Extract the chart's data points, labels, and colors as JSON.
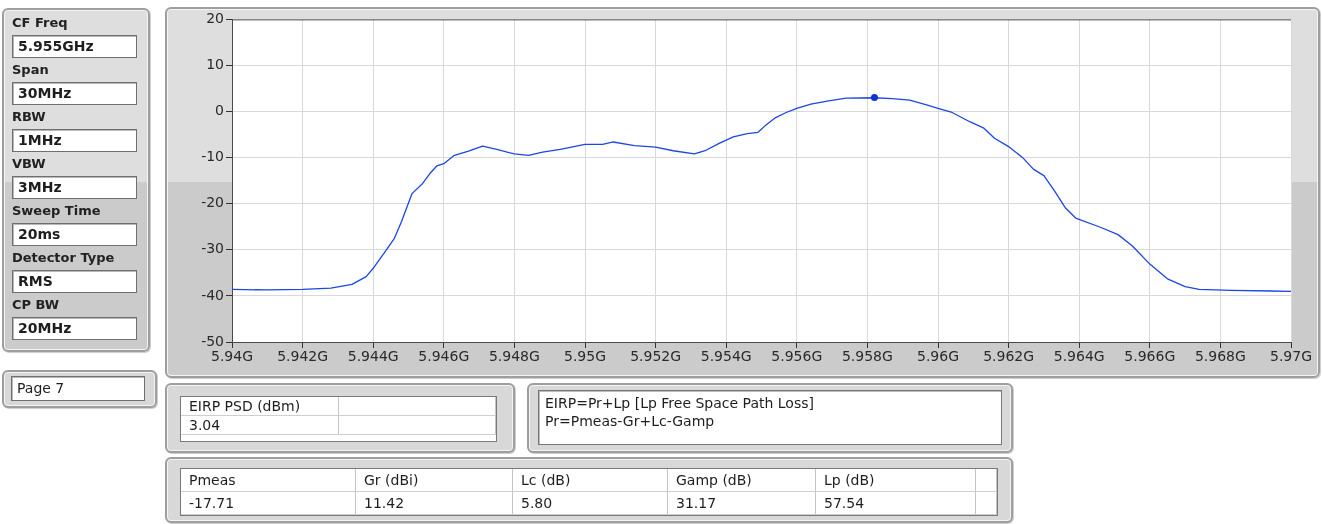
{
  "chart_data": [
    {
      "type": "line",
      "x": [
        5.94,
        5.941,
        5.942,
        5.9428,
        5.9434,
        5.9438,
        5.944,
        5.9443,
        5.9446,
        5.9448,
        5.9451,
        5.9454,
        5.9456,
        5.9458,
        5.946,
        5.9463,
        5.9467,
        5.9471,
        5.9475,
        5.948,
        5.9484,
        5.9488,
        5.9493,
        5.95,
        5.9505,
        5.9508,
        5.9514,
        5.952,
        5.9525,
        5.9531,
        5.9534,
        5.9538,
        5.9542,
        5.9546,
        5.9549,
        5.9551,
        5.9554,
        5.9557,
        5.956,
        5.9564,
        5.9569,
        5.9574,
        5.9582,
        5.9587,
        5.9592,
        5.9597,
        5.96,
        5.9604,
        5.9609,
        5.9613,
        5.9616,
        5.962,
        5.9624,
        5.9627,
        5.963,
        5.9633,
        5.9636,
        5.9639,
        5.9646,
        5.9651,
        5.9655,
        5.966,
        5.9665,
        5.967,
        5.9674,
        5.9683,
        5.97
      ],
      "series": [
        {
          "type": "line",
          "color": "#1c46e6",
          "marker": "none",
          "values": [
            -38.6,
            -38.7,
            -38.6,
            -38.3,
            -37.5,
            -35.8,
            -34.0,
            -30.8,
            -27.5,
            -23.9,
            -17.8,
            -15.6,
            -13.5,
            -11.8,
            -11.3,
            -9.5,
            -8.6,
            -7.5,
            -8.2,
            -9.2,
            -9.5,
            -8.8,
            -8.2,
            -7.1,
            -7.1,
            -6.6,
            -7.4,
            -7.7,
            -8.5,
            -9.2,
            -8.5,
            -6.9,
            -5.5,
            -4.8,
            -4.5,
            -3.1,
            -1.3,
            -0.2,
            0.7,
            1.6,
            2.3,
            2.9,
            3.0,
            2.8,
            2.5,
            1.4,
            0.7,
            -0.2,
            -2.2,
            -3.6,
            -5.8,
            -7.6,
            -10.0,
            -12.5,
            -13.9,
            -17.2,
            -20.8,
            -23.1,
            -25.1,
            -26.7,
            -29.1,
            -33.1,
            -36.3,
            -38.0,
            -38.6,
            -38.8,
            -39.0
          ]
        },
        {
          "type": "scatter",
          "color": "#0d35c9",
          "marker": "circle",
          "x": [
            5.9582
          ],
          "values": [
            3.04
          ]
        }
      ],
      "xlim": [
        5.94,
        5.97
      ],
      "xticks": [
        {
          "value": 5.94,
          "label": "5.94G"
        },
        {
          "value": 5.942,
          "label": "5.942G"
        },
        {
          "value": 5.944,
          "label": "5.944G"
        },
        {
          "value": 5.946,
          "label": "5.946G"
        },
        {
          "value": 5.948,
          "label": "5.948G"
        },
        {
          "value": 5.95,
          "label": "5.95G"
        },
        {
          "value": 5.952,
          "label": "5.952G"
        },
        {
          "value": 5.954,
          "label": "5.954G"
        },
        {
          "value": 5.956,
          "label": "5.956G"
        },
        {
          "value": 5.958,
          "label": "5.958G"
        },
        {
          "value": 5.96,
          "label": "5.96G"
        },
        {
          "value": 5.962,
          "label": "5.962G"
        },
        {
          "value": 5.964,
          "label": "5.964G"
        },
        {
          "value": 5.966,
          "label": "5.966G"
        },
        {
          "value": 5.968,
          "label": "5.968G"
        },
        {
          "value": 5.97,
          "label": "5.97G"
        }
      ],
      "ylim": [
        -50,
        20
      ],
      "yticks": [
        -50,
        -40,
        -30,
        -20,
        -10,
        0,
        10,
        20
      ],
      "grid": true,
      "legend": false
    },
    {
      "type": "other",
      "annotations": [
        "CF Freq",
        "5.955GHz",
        "Span",
        "30MHz",
        "RBW",
        "1MHz",
        "VBW",
        "3MHz",
        "Sweep Time",
        "20ms",
        "Detector Type",
        "RMS",
        "CP BW",
        "20MHz"
      ]
    },
    {
      "type": "other",
      "annotations": [
        "Page 7"
      ]
    },
    {
      "type": "other",
      "annotations": [
        "EIRP PSD (dBm)",
        "3.04"
      ]
    },
    {
      "type": "other",
      "annotations": [
        "EIRP=Pr+Lp [Lp Free Space Path Loss]",
        "Pr=Pmeas-Gr+Lc-Gamp"
      ]
    },
    {
      "type": "other",
      "annotations": [
        "Pmeas",
        "Gr (dBi)",
        "Lc (dB)",
        "Gamp (dB)",
        "Lp (dB)",
        "-17.71",
        "11.42",
        "5.80",
        "31.17",
        "57.54"
      ]
    }
  ]
}
